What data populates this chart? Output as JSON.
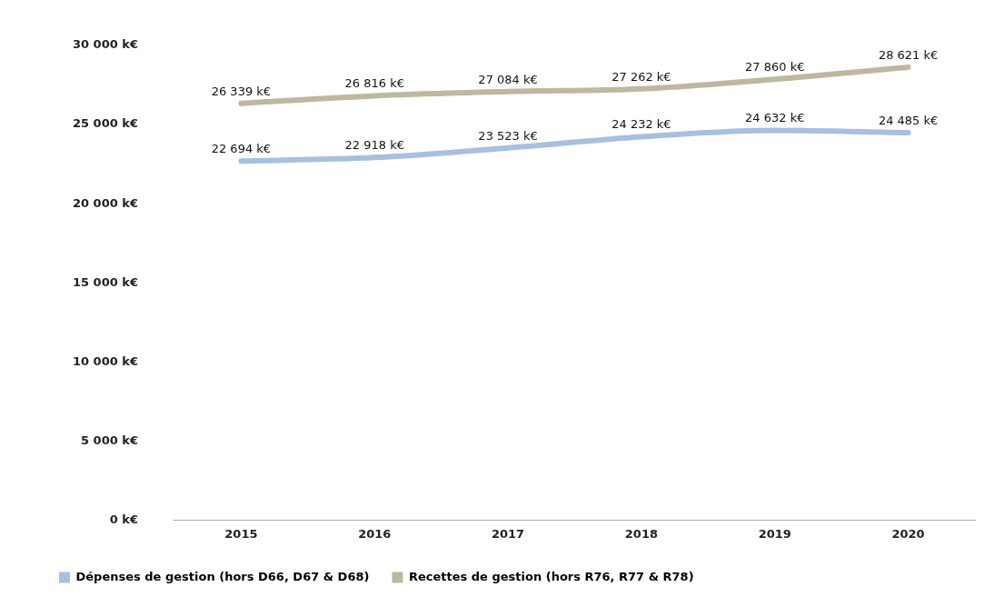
{
  "chart_data": {
    "type": "line",
    "categories": [
      "2015",
      "2016",
      "2017",
      "2018",
      "2019",
      "2020"
    ],
    "series": [
      {
        "name": "Dépenses de gestion (hors D66, D67 & D68)",
        "color": "#a9bfe0",
        "values": [
          22694,
          22918,
          23523,
          24232,
          24632,
          24485
        ],
        "value_labels": [
          "22 694 k€",
          "22 918 k€",
          "23 523 k€",
          "24 232 k€",
          "24 632 k€",
          "24 485 k€"
        ]
      },
      {
        "name": "Recettes de gestion (hors R76, R77 & R78)",
        "color": "#bdb8a0",
        "values": [
          26339,
          26816,
          27084,
          27262,
          27860,
          28621
        ],
        "value_labels": [
          "26 339 k€",
          "26 816 k€",
          "27 084 k€",
          "27 262 k€",
          "27 860 k€",
          "28 621 k€"
        ]
      }
    ],
    "ylim": [
      0,
      30000
    ],
    "yticks": [
      {
        "value": 0,
        "label": "0 k€"
      },
      {
        "value": 5000,
        "label": "5 000 k€"
      },
      {
        "value": 10000,
        "label": "10 000 k€"
      },
      {
        "value": 15000,
        "label": "15 000 k€"
      },
      {
        "value": 20000,
        "label": "20 000 k€"
      },
      {
        "value": 25000,
        "label": "25 000 k€"
      },
      {
        "value": 30000,
        "label": "30 000 k€"
      }
    ],
    "legend": "bottom",
    "marker": "none",
    "line_style": "solid"
  }
}
